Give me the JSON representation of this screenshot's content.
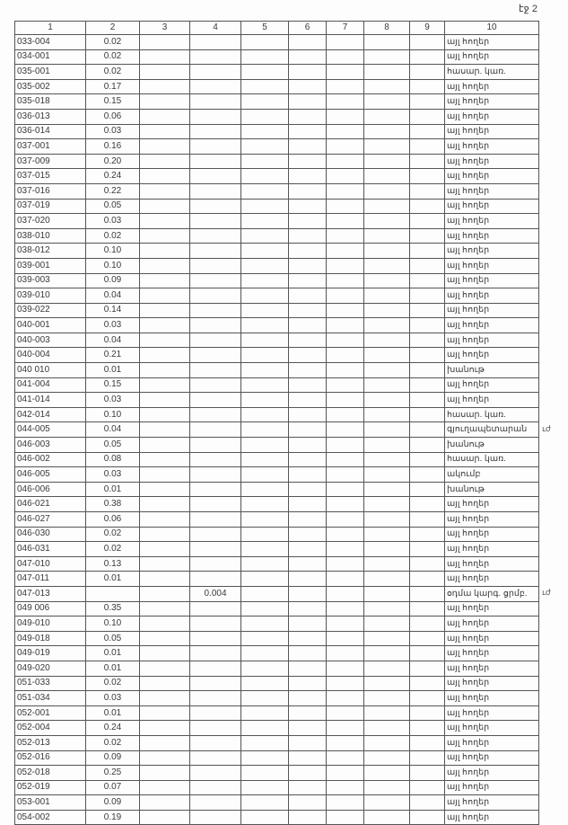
{
  "page_label": "էջ 2",
  "columns": [
    "1",
    "2",
    "3",
    "4",
    "5",
    "6",
    "7",
    "8",
    "9",
    "10"
  ],
  "rows": [
    {
      "id": "033-004",
      "c2": "0.02",
      "c4": "",
      "c10": "այլ հողեր"
    },
    {
      "id": "034-001",
      "c2": "0.02",
      "c4": "",
      "c10": "այլ հողեր"
    },
    {
      "id": "035-001",
      "c2": "0.02",
      "c4": "",
      "c10": "հասար. կառ."
    },
    {
      "id": "035-002",
      "c2": "0.17",
      "c4": "",
      "c10": "այլ հողեր"
    },
    {
      "id": "035-018",
      "c2": "0.15",
      "c4": "",
      "c10": "այլ հողեր"
    },
    {
      "id": "036-013",
      "c2": "0.06",
      "c4": "",
      "c10": "այլ հողեր"
    },
    {
      "id": "036-014",
      "c2": "0.03",
      "c4": "",
      "c10": "այլ հողեր"
    },
    {
      "id": "037-001",
      "c2": "0.16",
      "c4": "",
      "c10": "այլ հողեր"
    },
    {
      "id": "037-009",
      "c2": "0.20",
      "c4": "",
      "c10": "այլ հողեր"
    },
    {
      "id": "037-015",
      "c2": "0.24",
      "c4": "",
      "c10": "այլ հողեր"
    },
    {
      "id": "037-016",
      "c2": "0.22",
      "c4": "",
      "c10": "այլ հողեր"
    },
    {
      "id": "037-019",
      "c2": "0.05",
      "c4": "",
      "c10": "այլ հողեր"
    },
    {
      "id": "037-020",
      "c2": "0.03",
      "c4": "",
      "c10": "այլ հողեր"
    },
    {
      "id": "038-010",
      "c2": "0.02",
      "c4": "",
      "c10": "այլ հողեր"
    },
    {
      "id": "038-012",
      "c2": "0.10",
      "c4": "",
      "c10": "այլ հողեր"
    },
    {
      "id": "039-001",
      "c2": "0.10",
      "c4": "",
      "c10": "այլ հողեր"
    },
    {
      "id": "039-003",
      "c2": "0.09",
      "c4": "",
      "c10": "այլ հողեր"
    },
    {
      "id": "039-010",
      "c2": "0.04",
      "c4": "",
      "c10": "այլ հողեր"
    },
    {
      "id": "039-022",
      "c2": "0.14",
      "c4": "",
      "c10": "այլ հողեր"
    },
    {
      "id": "040-001",
      "c2": "0.03",
      "c4": "",
      "c10": "այլ հողեր"
    },
    {
      "id": "040-003",
      "c2": "0.04",
      "c4": "",
      "c10": "այլ հողեր"
    },
    {
      "id": "040-004",
      "c2": "0.21",
      "c4": "",
      "c10": "այլ հողեր"
    },
    {
      "id": "040 010",
      "c2": "0.01",
      "c4": "",
      "c10": "խանութ"
    },
    {
      "id": "041-004",
      "c2": "0.15",
      "c4": "",
      "c10": "այլ հողեր"
    },
    {
      "id": "041-014",
      "c2": "0.03",
      "c4": "",
      "c10": "այլ հողեր"
    },
    {
      "id": "042-014",
      "c2": "0.10",
      "c4": "",
      "c10": "հասար. կառ."
    },
    {
      "id": "044-005",
      "c2": "0.04",
      "c4": "",
      "c10": "գյուղապետարան",
      "note": "ւժ"
    },
    {
      "id": "046-003",
      "c2": "0.05",
      "c4": "",
      "c10": "խանութ"
    },
    {
      "id": "046-002",
      "c2": "0.08",
      "c4": "",
      "c10": "հասար. կառ."
    },
    {
      "id": "046-005",
      "c2": "0.03",
      "c4": "",
      "c10": "ակումբ"
    },
    {
      "id": "046-006",
      "c2": "0.01",
      "c4": "",
      "c10": "խանութ"
    },
    {
      "id": "046-021",
      "c2": "0.38",
      "c4": "",
      "c10": "այլ հողեր"
    },
    {
      "id": "046-027",
      "c2": "0.06",
      "c4": "",
      "c10": "այլ հողեր"
    },
    {
      "id": "046-030",
      "c2": "0.02",
      "c4": "",
      "c10": "այլ հողեր"
    },
    {
      "id": "046-031",
      "c2": "0.02",
      "c4": "",
      "c10": "այլ հողեր"
    },
    {
      "id": "047-010",
      "c2": "0.13",
      "c4": "",
      "c10": "այլ հողեր"
    },
    {
      "id": "047-011",
      "c2": "0.01",
      "c4": "",
      "c10": "այլ հողեր"
    },
    {
      "id": "047-013",
      "c2": "",
      "c4": "0.004",
      "c10": "օդմա կարգ. ցրմբ.",
      "note": "ւժ"
    },
    {
      "id": "049 006",
      "c2": "0.35",
      "c4": "",
      "c10": "այլ հողեր"
    },
    {
      "id": "049-010",
      "c2": "0.10",
      "c4": "",
      "c10": "այլ հողեր"
    },
    {
      "id": "049-018",
      "c2": "0.05",
      "c4": "",
      "c10": "այլ հողեր"
    },
    {
      "id": "049-019",
      "c2": "0.01",
      "c4": "",
      "c10": "այլ հողեր"
    },
    {
      "id": "049-020",
      "c2": "0.01",
      "c4": "",
      "c10": "այլ հողեր"
    },
    {
      "id": "051-033",
      "c2": "0.02",
      "c4": "",
      "c10": "այլ հողեր"
    },
    {
      "id": "051-034",
      "c2": "0.03",
      "c4": "",
      "c10": "այլ հողեր"
    },
    {
      "id": "052-001",
      "c2": "0.01",
      "c4": "",
      "c10": "այլ հողեր"
    },
    {
      "id": "052-004",
      "c2": "0.24",
      "c4": "",
      "c10": "այլ հողեր"
    },
    {
      "id": "052-013",
      "c2": "0.02",
      "c4": "",
      "c10": "այլ հողեր"
    },
    {
      "id": "052-016",
      "c2": "0.09",
      "c4": "",
      "c10": "այլ հողեր"
    },
    {
      "id": "052-018",
      "c2": "0.25",
      "c4": "",
      "c10": "այլ հողեր"
    },
    {
      "id": "052-019",
      "c2": "0.07",
      "c4": "",
      "c10": "այլ հողեր"
    },
    {
      "id": "053-001",
      "c2": "0.09",
      "c4": "",
      "c10": "այլ հողեր"
    },
    {
      "id": "054-002",
      "c2": "0.19",
      "c4": "",
      "c10": "այլ հողեր"
    }
  ]
}
